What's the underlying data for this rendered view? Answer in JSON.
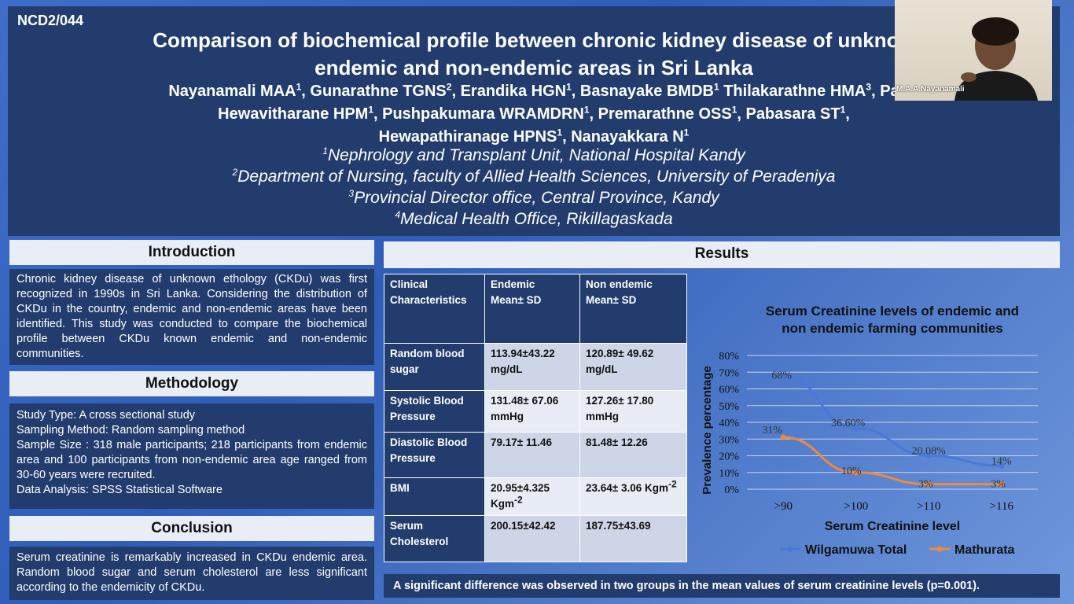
{
  "header": {
    "code": "NCD2/044",
    "title_line1": "Comparison of biochemical profile between chronic kidney disease of unknow",
    "title_line2": "endemic and non-endemic areas in Sri Lanka",
    "authors": [
      {
        "name": "Nayanamali MAA",
        "sup": "1",
        "sep": ", "
      },
      {
        "name": "Gunarathne TGNS",
        "sup": "2",
        "sep": ", "
      },
      {
        "name": "Erandika HGN",
        "sup": "1",
        "sep": ", "
      },
      {
        "name": "Basnayake BMDB",
        "sup": "1",
        "sep": " "
      },
      {
        "name": "Thilakarathne HMA",
        "sup": "3",
        "sep": ", "
      },
      {
        "name": "Pa",
        "sup": "",
        "sep": ""
      },
      {
        "name": "Hewavitharane HPM",
        "sup": "1",
        "sep": ", ",
        "br": true
      },
      {
        "name": "Pushpakumara WRAMDRN",
        "sup": "1",
        "sep": ",  "
      },
      {
        "name": "Premarathne OSS",
        "sup": "1",
        "sep": ", "
      },
      {
        "name": "Pabasara ST",
        "sup": "1",
        "sep": ","
      },
      {
        "name": "Hewapathiranage HPNS",
        "sup": "1",
        "sep": ", ",
        "br": true
      },
      {
        "name": "Nanayakkara N",
        "sup": "1",
        "sep": ""
      }
    ],
    "affiliations": [
      {
        "sup": "1",
        "text": "Nephrology and Transplant Unit, National Hospital Kandy"
      },
      {
        "sup": "2",
        "text": "Department of Nursing, faculty of Allied Health Sciences, University of Peradeniya"
      },
      {
        "sup": "3",
        "text": "Provincial Director office, Central Province, Kandy"
      },
      {
        "sup": "4",
        "text": "Medical Health Office, Rikillagaskada"
      }
    ]
  },
  "introduction": {
    "heading": "Introduction",
    "body": "Chronic kidney disease of unknown ethology (CKDu) was first recognized in 1990s in Sri Lanka. Considering the distribution of CKDu in the country, endemic and non-endemic areas have been identified. This study was conducted to compare the biochemical profile between CKDu known endemic and non-endemic communities."
  },
  "methodology": {
    "heading": "Methodology",
    "lines": [
      "Study Type: A cross sectional study",
      "Sampling Method: Random sampling method",
      "Sample Size : 318 male participants; 218 participants from endemic area and 100 participants from non-endemic area age ranged from 30-60 years were recruited.",
      "Data Analysis: SPSS Statistical Software"
    ]
  },
  "conclusion": {
    "heading": "Conclusion",
    "body": "Serum creatinine is remarkably increased in CKDu endemic area. Random blood sugar and serum cholesterol are less significant according to the endemicity of CKDu."
  },
  "results": {
    "heading": "Results",
    "table": {
      "headers": [
        [
          "Clinical",
          "Characteristics"
        ],
        [
          "Endemic",
          "Mean± SD"
        ],
        [
          "Non endemic",
          "Mean± SD"
        ]
      ],
      "rows": [
        {
          "label": "Random blood sugar",
          "endemic": "113.94±43.22 mg/dL",
          "non_endemic": "120.89± 49.62 mg/dL"
        },
        {
          "label": "Systolic Blood Pressure",
          "endemic": "131.48± 67.06 mmHg",
          "non_endemic": "127.26± 17.80 mmHg"
        },
        {
          "label": "Diastolic Blood Pressure",
          "endemic": "79.17± 11.46",
          "non_endemic": "81.48± 12.26"
        },
        {
          "label": "BMI",
          "endemic": "20.95±4.325 Kgm",
          "endemic_sup": "-2",
          "non_endemic": "23.64± 3.06 Kgm",
          "non_endemic_sup": "-2"
        },
        {
          "label": "Serum Cholesterol",
          "endemic": "200.15±42.42",
          "non_endemic": "187.75±43.69"
        }
      ]
    },
    "footer": "A significant difference was observed in two groups in the mean values of serum creatinine levels (p=0.001)."
  },
  "chart_data": {
    "type": "line",
    "title": "Serum Creatinine levels of endemic and non endemic farming communities",
    "title_lines": [
      "Serum Creatinine levels of endemic and",
      "non endemic farming communities"
    ],
    "xlabel": "Serum Creatinine level",
    "ylabel": "Prevalence percentage",
    "categories": [
      ">90",
      ">100",
      ">110",
      ">116"
    ],
    "ylim": [
      0,
      80
    ],
    "yticks": [
      "0%",
      "10%",
      "20%",
      "30%",
      "40%",
      "50%",
      "60%",
      "70%",
      "80%"
    ],
    "grid": true,
    "legend_position": "bottom",
    "series": [
      {
        "name": "Wilgamuwa Total",
        "values": [
          68,
          36.6,
          20.08,
          14
        ],
        "labels": [
          "68%",
          "36.60%",
          "20.08%",
          "14%"
        ],
        "color": "#4a78d8"
      },
      {
        "name": "Mathurata",
        "values": [
          31,
          10,
          3,
          3
        ],
        "labels": [
          "31%",
          "10%",
          "3%",
          "3%"
        ],
        "color": "#f08a3c"
      }
    ]
  },
  "webcam": {
    "name": "M.A.A.Nayanamali"
  }
}
